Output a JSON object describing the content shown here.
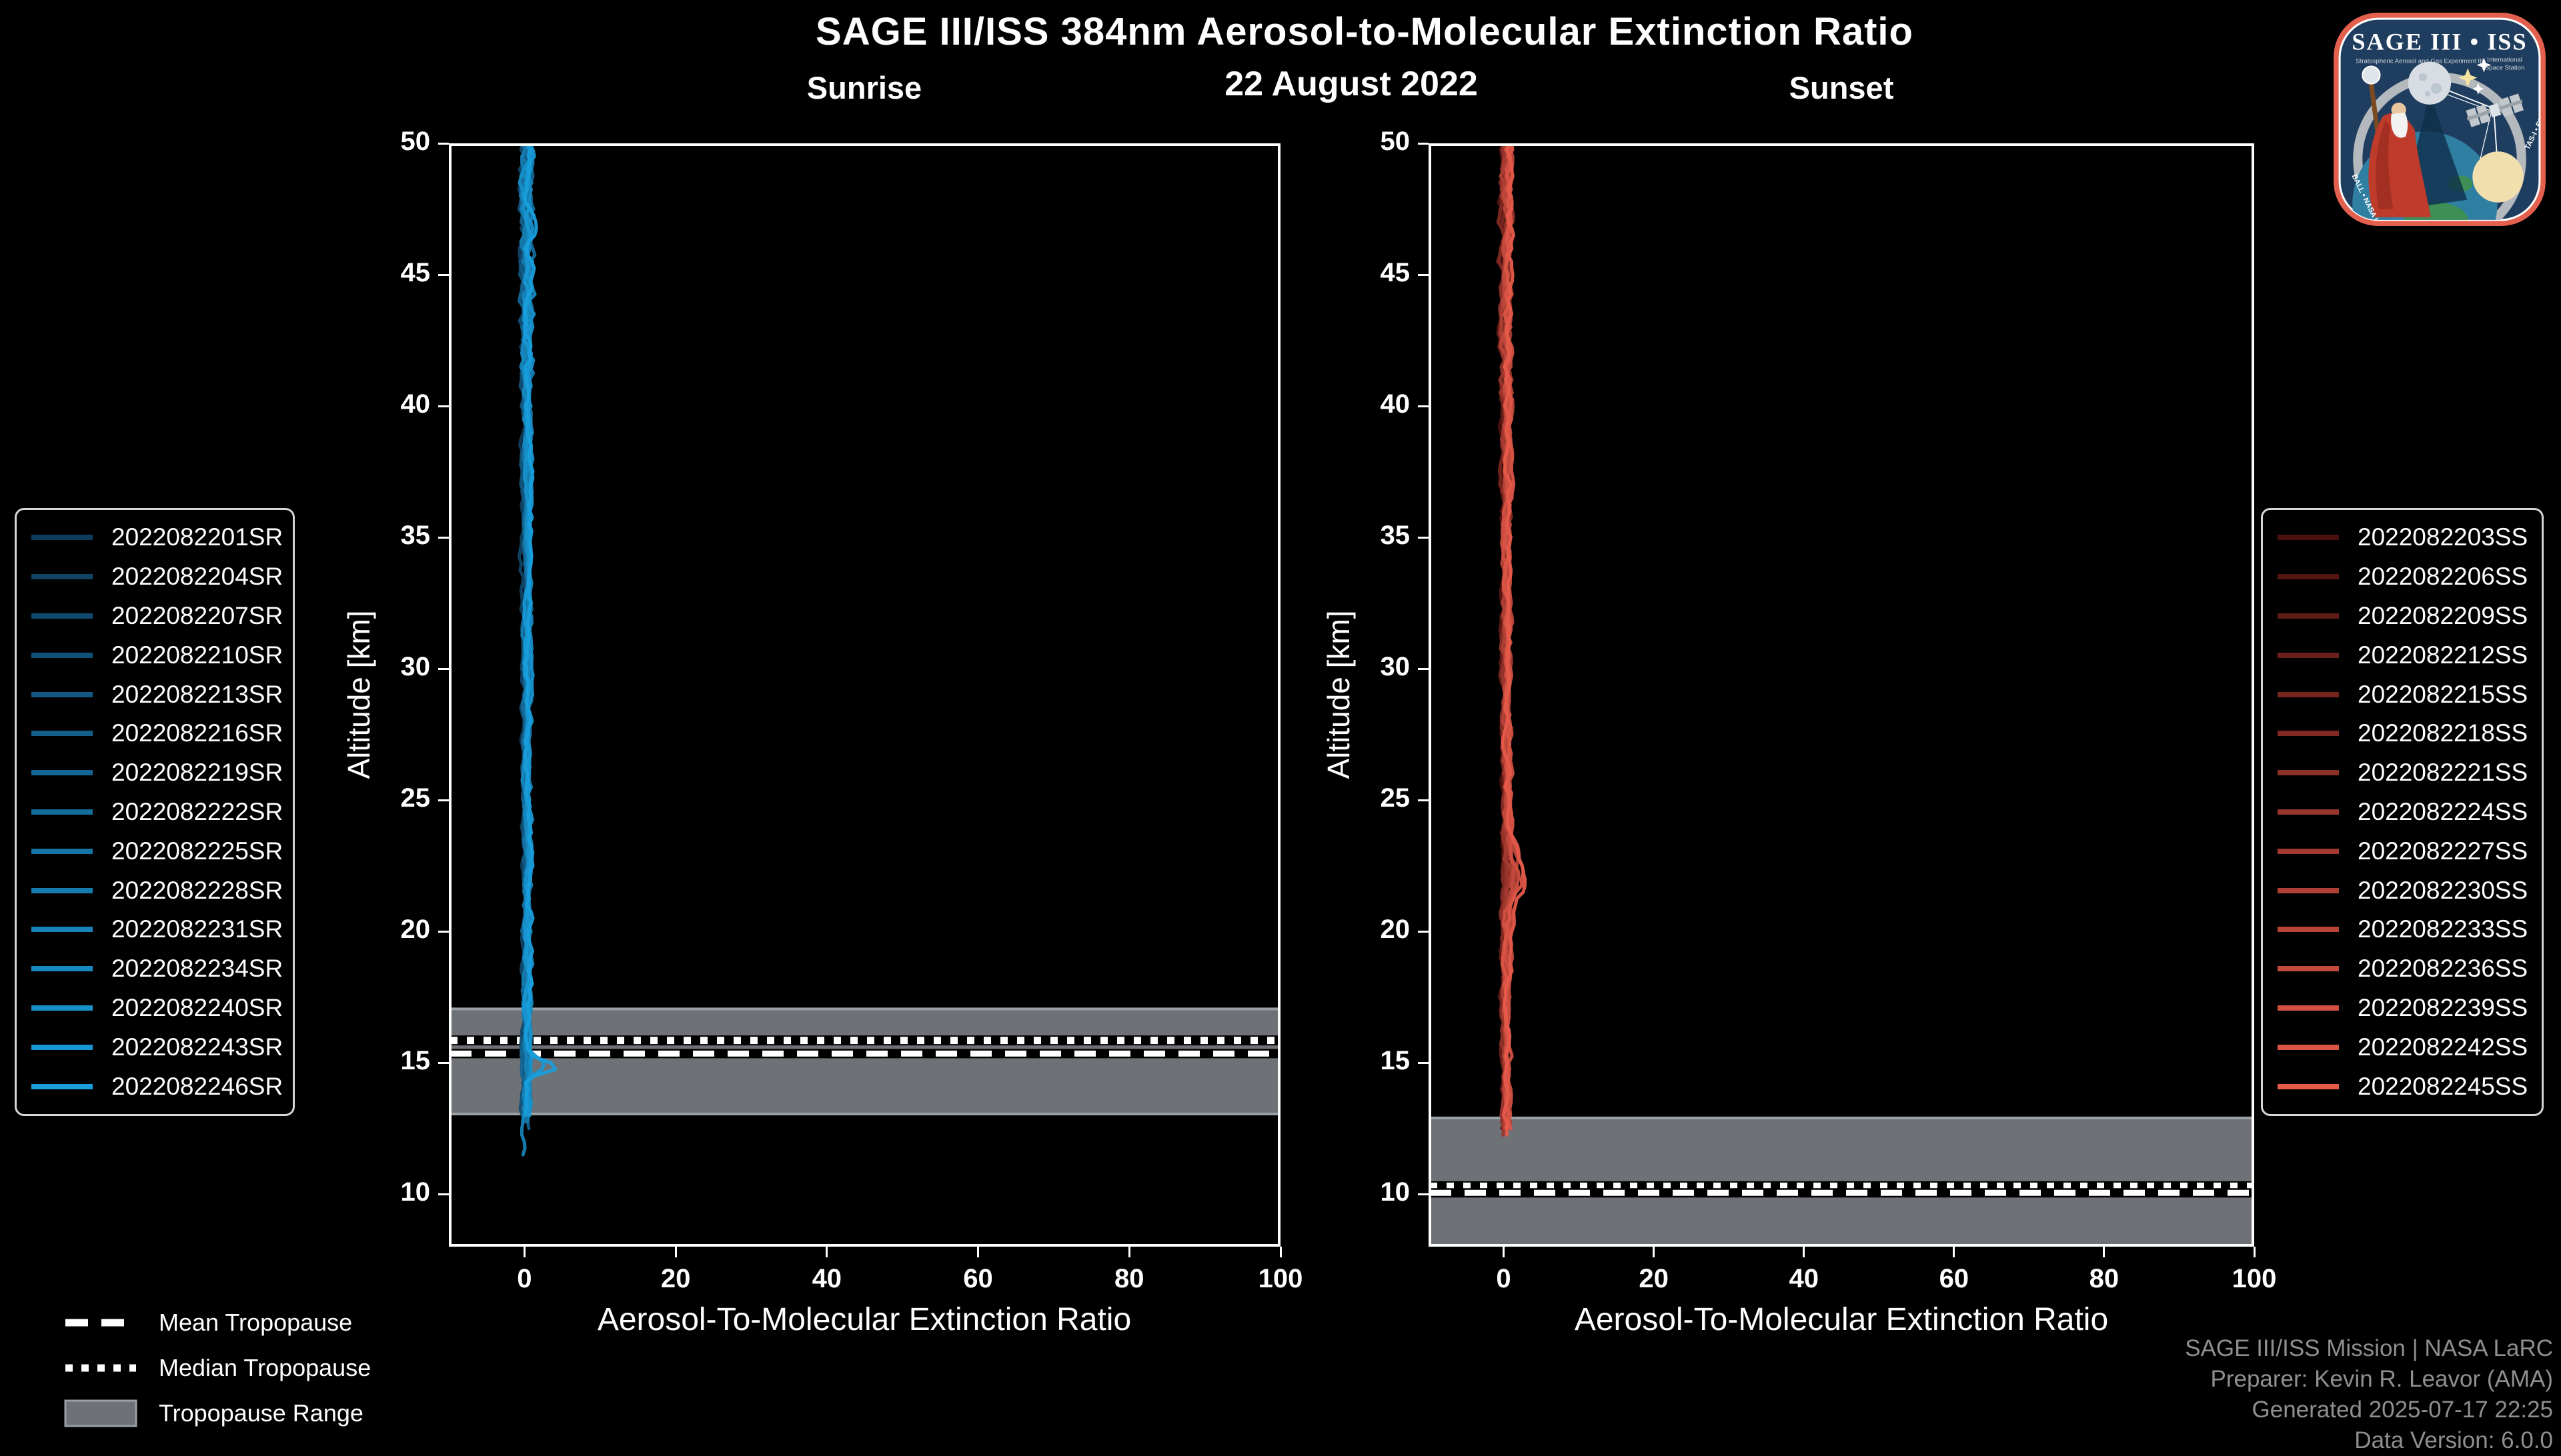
{
  "header": {
    "title": "SAGE III/ISS 384nm Aerosol-to-Molecular Extinction Ratio",
    "date": "22 August 2022"
  },
  "chart_data": [
    {
      "type": "line",
      "title": "Sunrise",
      "xlabel": "Aerosol-To-Molecular Extinction Ratio",
      "ylabel": "Altitude [km]",
      "xlim": [
        -10,
        100
      ],
      "ylim": [
        8,
        50
      ],
      "xticks": [
        0,
        20,
        40,
        60,
        80,
        100
      ],
      "yticks": [
        10,
        15,
        20,
        25,
        30,
        35,
        40,
        45,
        50
      ],
      "grid": false,
      "legend_position": "outside-left",
      "series": [
        {
          "name": "2022082201SR",
          "color": "#103C5C"
        },
        {
          "name": "2022082204SR",
          "color": "#114365"
        },
        {
          "name": "2022082207SR",
          "color": "#114A6E"
        },
        {
          "name": "2022082210SR",
          "color": "#125177"
        },
        {
          "name": "2022082213SR",
          "color": "#125880"
        },
        {
          "name": "2022082216SR",
          "color": "#135F8A"
        },
        {
          "name": "2022082219SR",
          "color": "#136693"
        },
        {
          "name": "2022082222SR",
          "color": "#146D9C"
        },
        {
          "name": "2022082225SR",
          "color": "#1574A5"
        },
        {
          "name": "2022082228SR",
          "color": "#157BAE"
        },
        {
          "name": "2022082231SR",
          "color": "#1682B7"
        },
        {
          "name": "2022082234SR",
          "color": "#1689C1"
        },
        {
          "name": "2022082240SR",
          "color": "#1790CA"
        },
        {
          "name": "2022082243SR",
          "color": "#1797D3"
        },
        {
          "name": "2022082246SR",
          "color": "#189EDC"
        }
      ],
      "profile_shape": {
        "description": "15 vertical extinction-ratio profiles hugging x=0 from ~12.5 km to 50 km, noisier above ~41 km, one bright profile with a spike to ~+4.5 near 14.9 km, one profile reaching down to ~11.4 km",
        "base_x": 0.3,
        "series_spread": 0.04,
        "noise_base": 0.3,
        "noise_top": 0.55,
        "top_noise_above_km": 41,
        "bottoms_km": [
          12.7,
          12.9,
          12.6,
          13.0,
          12.8,
          12.5,
          12.9,
          12.7,
          13.1,
          12.6,
          11.45,
          12.8,
          13.0,
          12.9,
          12.85
        ],
        "features": [
          {
            "type": "bump",
            "alt": 14.85,
            "sigma": 0.33,
            "amp": 4.3,
            "series": [
              14
            ]
          },
          {
            "type": "bump",
            "alt": 14.95,
            "sigma": 0.4,
            "amp": 2.3,
            "series": [
              13
            ]
          },
          {
            "type": "shift_below",
            "alt": 13.0,
            "amp": -0.5,
            "series": [
              10
            ]
          }
        ]
      },
      "tropopause": {
        "mean_km": 15.35,
        "median_km": 15.85,
        "range_km": [
          13.0,
          17.1
        ]
      }
    },
    {
      "type": "line",
      "title": "Sunset",
      "xlabel": "Aerosol-To-Molecular Extinction Ratio",
      "ylabel": "Altitude [km]",
      "xlim": [
        -10,
        100
      ],
      "ylim": [
        8,
        50
      ],
      "xticks": [
        0,
        20,
        40,
        60,
        80,
        100
      ],
      "yticks": [
        10,
        15,
        20,
        25,
        30,
        35,
        40,
        45,
        50
      ],
      "grid": false,
      "legend_position": "outside-right",
      "series": [
        {
          "name": "2022082203SS",
          "color": "#4A100E"
        },
        {
          "name": "2022082206SS",
          "color": "#551512"
        },
        {
          "name": "2022082209SS",
          "color": "#601B17"
        },
        {
          "name": "2022082212SS",
          "color": "#6B201B"
        },
        {
          "name": "2022082215SS",
          "color": "#77251F"
        },
        {
          "name": "2022082218SS",
          "color": "#822A23"
        },
        {
          "name": "2022082221SS",
          "color": "#8D3028"
        },
        {
          "name": "2022082224SS",
          "color": "#98352C"
        },
        {
          "name": "2022082227SS",
          "color": "#A33A30"
        },
        {
          "name": "2022082230SS",
          "color": "#AE4035"
        },
        {
          "name": "2022082233SS",
          "color": "#B94539"
        },
        {
          "name": "2022082236SS",
          "color": "#C44A3D"
        },
        {
          "name": "2022082239SS",
          "color": "#D04F41"
        },
        {
          "name": "2022082242SS",
          "color": "#DB5546"
        },
        {
          "name": "2022082245SS",
          "color": "#E65A4A"
        }
      ],
      "profile_shape": {
        "description": "15 vertical extinction-ratio profiles hugging x=0 from ~12.2 km to 50 km, jagged above ~40 km, broad rightward bulge to ~+2 between 20.5 and 24 km",
        "base_x": 0.35,
        "series_spread": 0.04,
        "noise_base": 0.33,
        "noise_top": 0.5,
        "top_noise_above_km": 40,
        "bottoms_km": [
          12.5,
          12.3,
          12.6,
          12.4,
          12.7,
          12.3,
          12.5,
          12.2,
          12.6,
          12.4,
          12.3,
          12.5,
          12.4,
          12.35,
          12.25
        ],
        "features": [
          {
            "type": "bump",
            "alt": 22.2,
            "sigma": 1.15,
            "amp_min": 0.25,
            "amp_max": 1.9,
            "series": [
              7,
              8,
              9,
              10,
              11,
              12,
              13,
              14
            ]
          },
          {
            "type": "bump",
            "alt": 20.7,
            "sigma": 0.45,
            "amp": -0.5,
            "series": [
              0,
              3,
              6,
              9,
              12
            ]
          }
        ]
      },
      "tropopause": {
        "mean_km": 10.05,
        "median_km": 10.3,
        "range_km": [
          8.0,
          12.95
        ]
      }
    }
  ],
  "tropopause_legend": [
    {
      "label": "Mean Tropopause",
      "style": "dashed"
    },
    {
      "label": "Median Tropopause",
      "style": "dotted"
    },
    {
      "label": "Tropopause Range",
      "style": "band"
    }
  ],
  "attribution": {
    "lines": [
      "SAGE III/ISS Mission | NASA LaRC",
      "Preparer: Kevin R. Leavor (AMA)",
      "Generated 2025-07-17 22:25",
      "Data Version: 6.0.0"
    ]
  },
  "logo": {
    "title": "SAGE III • ISS",
    "subtitle_left": "Stratospheric Aerosol and Gas Experiment III",
    "subtitle_right_line1": "International",
    "subtitle_right_line2": "Space Station",
    "border_left": "BALL • NASA LANGLEY RESEARCH CENTER",
    "border_right": "TAS-I • ESA"
  },
  "colors": {
    "background": "#000000",
    "axis": "#ffffff",
    "text": "#ffffff",
    "band": "#6E7176",
    "band_edge": "#9AA0A5",
    "mean_line": "#ffffff",
    "median_line": "#ffffff",
    "line_underlay": "#000000",
    "legend_border": "#D6D6D6",
    "attribution": "#8F8F8F",
    "patch_border": "#E4604E",
    "patch_background": "#1F3D5E"
  }
}
